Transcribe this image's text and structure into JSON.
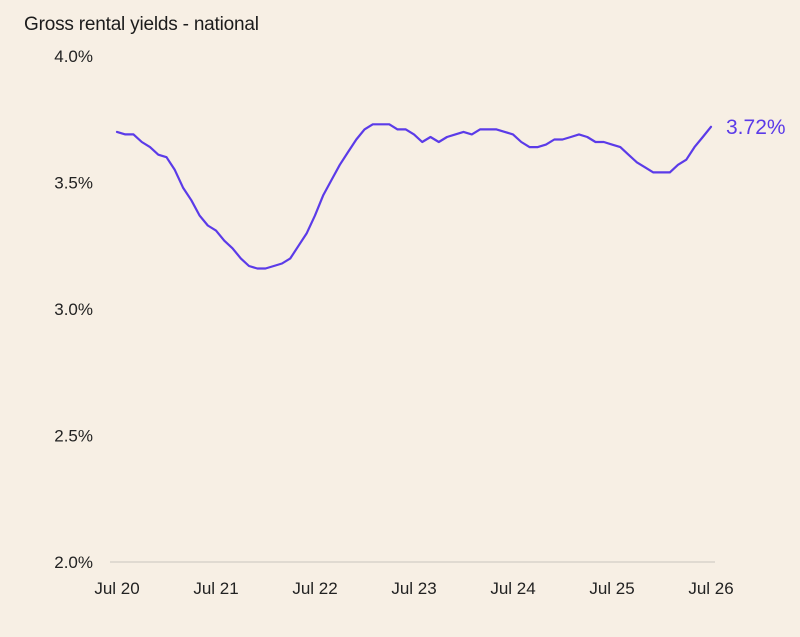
{
  "colors": {
    "background": "#F7EFE4",
    "line": "#5B3BE8",
    "axis": "#C9C4BE",
    "text": "#222222"
  },
  "chart_data": {
    "type": "line",
    "title": "Gross rental yields - national",
    "xlabel": "",
    "ylabel": "",
    "ylim": [
      2.0,
      4.0
    ],
    "y_ticks": [
      2.0,
      2.5,
      3.0,
      3.5,
      4.0
    ],
    "y_tick_labels": [
      "2.0%",
      "2.5%",
      "3.0%",
      "3.5%",
      "4.0%"
    ],
    "x_tick_labels": [
      "Jul 20",
      "Jul 21",
      "Jul 22",
      "Jul 23",
      "Jul 24",
      "Jul 25",
      "Jul 26"
    ],
    "x_tick_dates": [
      "2020-07",
      "2021-07",
      "2022-07",
      "2023-07",
      "2024-07",
      "2025-07",
      "2026-07"
    ],
    "grid": false,
    "legend": "none",
    "end_label": "3.72%",
    "series": [
      {
        "x": [
          "2020-07",
          "2020-08",
          "2020-09",
          "2020-10",
          "2020-11",
          "2020-12",
          "2021-01",
          "2021-02",
          "2021-03",
          "2021-04",
          "2021-05",
          "2021-06",
          "2021-07",
          "2021-08",
          "2021-09",
          "2021-10",
          "2021-11",
          "2021-12",
          "2022-01",
          "2022-02",
          "2022-03",
          "2022-04",
          "2022-05",
          "2022-06",
          "2022-07",
          "2022-08",
          "2022-09",
          "2022-10",
          "2022-11",
          "2022-12",
          "2023-01",
          "2023-02",
          "2023-03",
          "2023-04",
          "2023-05",
          "2023-06",
          "2023-07",
          "2023-08",
          "2023-09",
          "2023-10",
          "2023-11",
          "2023-12",
          "2024-01",
          "2024-02",
          "2024-03",
          "2024-04",
          "2024-05",
          "2024-06",
          "2024-07",
          "2024-08",
          "2024-09",
          "2024-10",
          "2024-11",
          "2024-12",
          "2025-01",
          "2025-02",
          "2025-03",
          "2025-04",
          "2025-05",
          "2025-06",
          "2025-07",
          "2025-08",
          "2025-09",
          "2025-10",
          "2025-11",
          "2025-12",
          "2026-01",
          "2026-02",
          "2026-03",
          "2026-04",
          "2026-05",
          "2026-06",
          "2026-07"
        ],
        "values": [
          3.7,
          3.69,
          3.69,
          3.66,
          3.64,
          3.61,
          3.6,
          3.55,
          3.48,
          3.43,
          3.37,
          3.33,
          3.31,
          3.27,
          3.24,
          3.2,
          3.17,
          3.16,
          3.16,
          3.17,
          3.18,
          3.2,
          3.25,
          3.3,
          3.37,
          3.45,
          3.51,
          3.57,
          3.62,
          3.67,
          3.71,
          3.73,
          3.73,
          3.73,
          3.71,
          3.71,
          3.69,
          3.66,
          3.68,
          3.66,
          3.68,
          3.69,
          3.7,
          3.69,
          3.71,
          3.71,
          3.71,
          3.7,
          3.69,
          3.66,
          3.64,
          3.64,
          3.65,
          3.67,
          3.67,
          3.68,
          3.69,
          3.68,
          3.66,
          3.66,
          3.65,
          3.64,
          3.61,
          3.58,
          3.56,
          3.54,
          3.54,
          3.54,
          3.57,
          3.59,
          3.64,
          3.68,
          3.72
        ]
      }
    ]
  }
}
